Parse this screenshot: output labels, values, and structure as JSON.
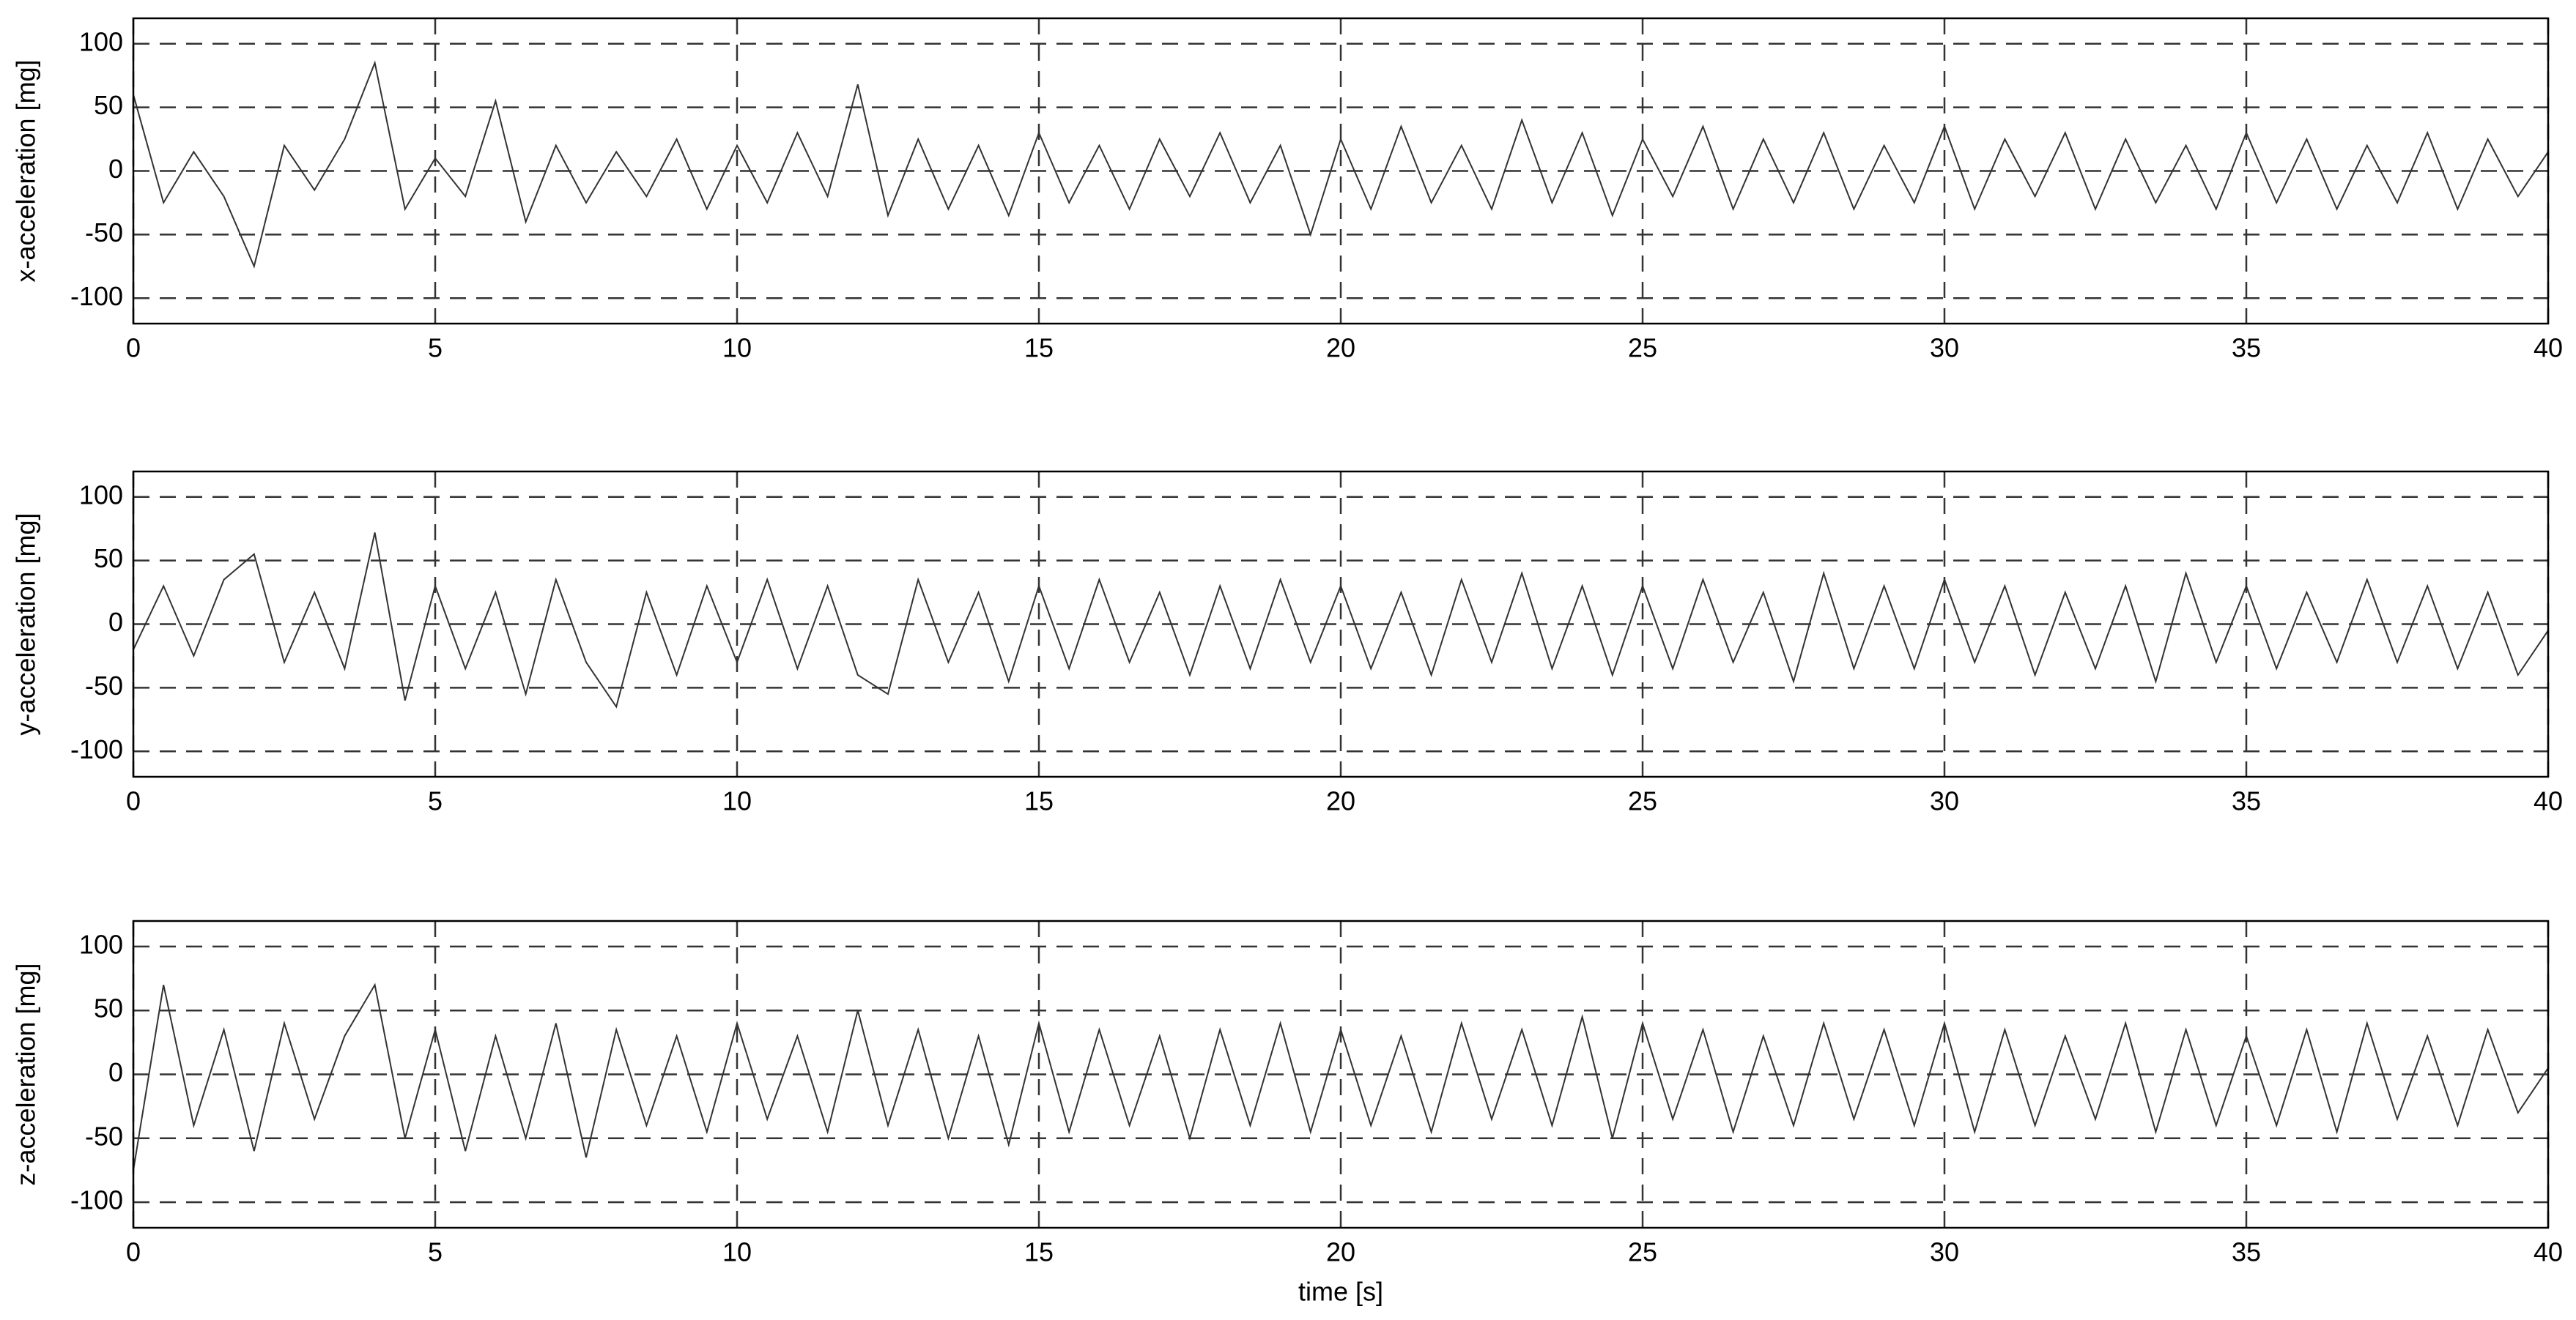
{
  "chart_data": [
    {
      "type": "line",
      "ylabel": "x-acceleration [mg]",
      "color": "#333333",
      "grid": true,
      "xlim": [
        0,
        40
      ],
      "xticks": [
        0,
        5,
        10,
        15,
        20,
        25,
        30,
        35,
        40
      ],
      "ylim": [
        -120,
        120
      ],
      "yticks": [
        -100,
        -50,
        0,
        50,
        100
      ],
      "x": [
        0,
        0.5,
        1,
        1.5,
        2,
        2.5,
        3,
        3.5,
        4,
        4.5,
        5,
        5.5,
        6,
        6.5,
        7,
        7.5,
        8,
        8.5,
        9,
        9.5,
        10,
        10.5,
        11,
        11.5,
        12,
        12.5,
        13,
        13.5,
        14,
        14.5,
        15,
        15.5,
        16,
        16.5,
        17,
        17.5,
        18,
        18.5,
        19,
        19.5,
        20,
        20.5,
        21,
        21.5,
        22,
        22.5,
        23,
        23.5,
        24,
        24.5,
        25,
        25.5,
        26,
        26.5,
        27,
        27.5,
        28,
        28.5,
        29,
        29.5,
        30,
        30.5,
        31,
        31.5,
        32,
        32.5,
        33,
        33.5,
        34,
        34.5,
        35,
        35.5,
        36,
        36.5,
        37,
        37.5,
        38,
        38.5,
        39,
        39.5,
        40
      ],
      "values": [
        60,
        -25,
        15,
        -20,
        -75,
        20,
        -15,
        25,
        85,
        -30,
        10,
        -20,
        55,
        -40,
        20,
        -25,
        15,
        -20,
        25,
        -30,
        20,
        -25,
        30,
        -20,
        68,
        -35,
        25,
        -30,
        20,
        -35,
        30,
        -25,
        20,
        -30,
        25,
        -20,
        30,
        -25,
        20,
        -50,
        25,
        -30,
        35,
        -25,
        20,
        -30,
        40,
        -25,
        30,
        -35,
        25,
        -20,
        35,
        -30,
        25,
        -25,
        30,
        -30,
        20,
        -25,
        35,
        -30,
        25,
        -20,
        30,
        -30,
        25,
        -25,
        20,
        -30,
        30,
        -25,
        25,
        -30,
        20,
        -25,
        30,
        -30,
        25,
        -20,
        15
      ]
    },
    {
      "type": "line",
      "ylabel": "y-acceleration [mg]",
      "color": "#333333",
      "grid": true,
      "xlim": [
        0,
        40
      ],
      "xticks": [
        0,
        5,
        10,
        15,
        20,
        25,
        30,
        35,
        40
      ],
      "ylim": [
        -120,
        120
      ],
      "yticks": [
        -100,
        -50,
        0,
        50,
        100
      ],
      "x": [
        0,
        0.5,
        1,
        1.5,
        2,
        2.5,
        3,
        3.5,
        4,
        4.5,
        5,
        5.5,
        6,
        6.5,
        7,
        7.5,
        8,
        8.5,
        9,
        9.5,
        10,
        10.5,
        11,
        11.5,
        12,
        12.5,
        13,
        13.5,
        14,
        14.5,
        15,
        15.5,
        16,
        16.5,
        17,
        17.5,
        18,
        18.5,
        19,
        19.5,
        20,
        20.5,
        21,
        21.5,
        22,
        22.5,
        23,
        23.5,
        24,
        24.5,
        25,
        25.5,
        26,
        26.5,
        27,
        27.5,
        28,
        28.5,
        29,
        29.5,
        30,
        30.5,
        31,
        31.5,
        32,
        32.5,
        33,
        33.5,
        34,
        34.5,
        35,
        35.5,
        36,
        36.5,
        37,
        37.5,
        38,
        38.5,
        39,
        39.5,
        40
      ],
      "values": [
        -20,
        30,
        -25,
        35,
        55,
        -30,
        25,
        -35,
        72,
        -60,
        30,
        -35,
        25,
        -55,
        35,
        -30,
        -65,
        25,
        -40,
        30,
        -30,
        35,
        -35,
        30,
        -40,
        -55,
        35,
        -30,
        25,
        -45,
        30,
        -35,
        35,
        -30,
        25,
        -40,
        30,
        -35,
        35,
        -30,
        30,
        -35,
        25,
        -40,
        35,
        -30,
        40,
        -35,
        30,
        -40,
        30,
        -35,
        35,
        -30,
        25,
        -45,
        40,
        -35,
        30,
        -35,
        35,
        -30,
        30,
        -40,
        25,
        -35,
        30,
        -45,
        40,
        -30,
        30,
        -35,
        25,
        -30,
        35,
        -30,
        30,
        -35,
        25,
        -40,
        -5
      ]
    },
    {
      "type": "line",
      "ylabel": "z-acceleration [mg]",
      "xlabel": "time [s]",
      "color": "#333333",
      "grid": true,
      "xlim": [
        0,
        40
      ],
      "xticks": [
        0,
        5,
        10,
        15,
        20,
        25,
        30,
        35,
        40
      ],
      "ylim": [
        -120,
        120
      ],
      "yticks": [
        -100,
        -50,
        0,
        50,
        100
      ],
      "x": [
        0,
        0.5,
        1,
        1.5,
        2,
        2.5,
        3,
        3.5,
        4,
        4.5,
        5,
        5.5,
        6,
        6.5,
        7,
        7.5,
        8,
        8.5,
        9,
        9.5,
        10,
        10.5,
        11,
        11.5,
        12,
        12.5,
        13,
        13.5,
        14,
        14.5,
        15,
        15.5,
        16,
        16.5,
        17,
        17.5,
        18,
        18.5,
        19,
        19.5,
        20,
        20.5,
        21,
        21.5,
        22,
        22.5,
        23,
        23.5,
        24,
        24.5,
        25,
        25.5,
        26,
        26.5,
        27,
        27.5,
        28,
        28.5,
        29,
        29.5,
        30,
        30.5,
        31,
        31.5,
        32,
        32.5,
        33,
        33.5,
        34,
        34.5,
        35,
        35.5,
        36,
        36.5,
        37,
        37.5,
        38,
        38.5,
        39,
        39.5,
        40
      ],
      "values": [
        -75,
        70,
        -40,
        35,
        -60,
        40,
        -35,
        30,
        70,
        -50,
        35,
        -60,
        30,
        -50,
        40,
        -65,
        35,
        -40,
        30,
        -45,
        40,
        -35,
        30,
        -45,
        50,
        -40,
        35,
        -50,
        30,
        -55,
        40,
        -45,
        35,
        -40,
        30,
        -50,
        35,
        -40,
        40,
        -45,
        35,
        -40,
        30,
        -45,
        40,
        -35,
        35,
        -40,
        45,
        -50,
        40,
        -35,
        35,
        -45,
        30,
        -40,
        40,
        -35,
        35,
        -40,
        40,
        -45,
        35,
        -40,
        30,
        -35,
        40,
        -45,
        35,
        -40,
        30,
        -40,
        35,
        -45,
        40,
        -35,
        30,
        -40,
        35,
        -30,
        5
      ]
    }
  ]
}
